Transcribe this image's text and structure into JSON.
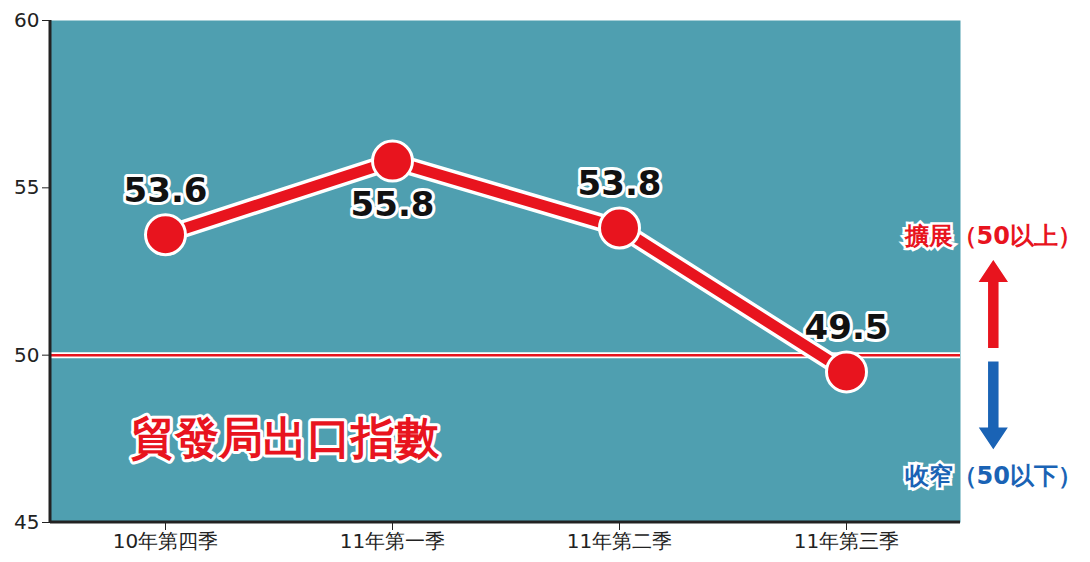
{
  "chart_data": {
    "type": "line",
    "title": "貿發局出口指數",
    "categories": [
      "10年第四季",
      "11年第一季",
      "11年第二季",
      "11年第三季"
    ],
    "values": [
      53.6,
      55.8,
      53.8,
      49.5
    ],
    "color": "#e8141e",
    "marker": "circle",
    "line_style": "solid",
    "ylim": [
      45,
      60
    ],
    "yticks": [
      45,
      50,
      55,
      60
    ],
    "grid": false,
    "data_labels": true,
    "reference_line": 50,
    "annotations": [
      "擴展（50以上）",
      "收窄（50以下）"
    ]
  }
}
